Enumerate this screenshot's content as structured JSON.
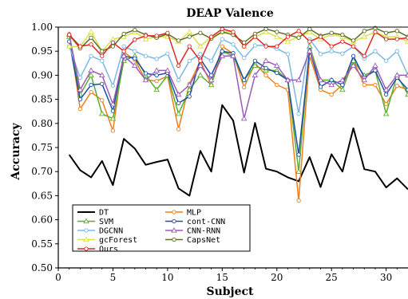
{
  "chart_data": {
    "type": "line",
    "title": "DEAP Valence",
    "xlabel": "Subject",
    "ylabel": "Accuracy",
    "xlim": [
      0,
      32
    ],
    "ylim": [
      0.5,
      1.0
    ],
    "xticks": [
      0,
      5,
      10,
      15,
      20,
      25,
      30
    ],
    "yticks": [
      0.5,
      0.55,
      0.6,
      0.65,
      0.7,
      0.75,
      0.8,
      0.85,
      0.9,
      0.95,
      1.0
    ],
    "grid": false,
    "legend_position": "bottom-left",
    "x": [
      1,
      2,
      3,
      4,
      5,
      6,
      7,
      8,
      9,
      10,
      11,
      12,
      13,
      14,
      15,
      16,
      17,
      18,
      19,
      20,
      21,
      22,
      23,
      24,
      25,
      26,
      27,
      28,
      29,
      30,
      31,
      32
    ],
    "series": [
      {
        "name": "DT",
        "color": "#000000",
        "marker": "none",
        "values": [
          0.735,
          0.703,
          0.688,
          0.722,
          0.672,
          0.768,
          0.748,
          0.714,
          0.72,
          0.725,
          0.665,
          0.65,
          0.743,
          0.7,
          0.838,
          0.806,
          0.698,
          0.801,
          0.706,
          0.7,
          0.688,
          0.68,
          0.73,
          0.668,
          0.736,
          0.7,
          0.79,
          0.705,
          0.7,
          0.667,
          0.686,
          0.663
        ]
      },
      {
        "name": "MLP",
        "color": "#f07d1a",
        "marker": "circle",
        "values": [
          0.985,
          0.83,
          0.865,
          0.848,
          0.785,
          0.948,
          0.932,
          0.89,
          0.888,
          0.898,
          0.788,
          0.882,
          0.93,
          0.88,
          0.96,
          0.945,
          0.875,
          0.925,
          0.9,
          0.88,
          0.87,
          0.64,
          0.94,
          0.87,
          0.86,
          0.88,
          0.93,
          0.88,
          0.88,
          0.84,
          0.878,
          0.87
        ]
      },
      {
        "name": "SVM",
        "color": "#5cae30",
        "marker": "triangle",
        "values": [
          0.98,
          0.86,
          0.9,
          0.82,
          0.81,
          0.93,
          0.94,
          0.9,
          0.87,
          0.9,
          0.82,
          0.87,
          0.9,
          0.88,
          0.95,
          0.94,
          0.89,
          0.92,
          0.91,
          0.91,
          0.89,
          0.7,
          0.96,
          0.89,
          0.89,
          0.87,
          0.93,
          0.9,
          0.91,
          0.82,
          0.9,
          0.86
        ]
      },
      {
        "name": "cont-CNN",
        "color": "#1c4fa6",
        "marker": "circle",
        "values": [
          0.97,
          0.85,
          0.88,
          0.882,
          0.826,
          0.94,
          0.935,
          0.904,
          0.9,
          0.905,
          0.842,
          0.856,
          0.934,
          0.9,
          0.95,
          0.946,
          0.89,
          0.93,
          0.915,
          0.905,
          0.89,
          0.735,
          0.952,
          0.876,
          0.89,
          0.88,
          0.94,
          0.895,
          0.91,
          0.86,
          0.895,
          0.87
        ]
      },
      {
        "name": "DGCNN",
        "color": "#7ab8e4",
        "marker": "circle",
        "values": [
          0.96,
          0.895,
          0.94,
          0.93,
          0.878,
          0.96,
          0.95,
          0.94,
          0.934,
          0.945,
          0.89,
          0.93,
          0.944,
          0.93,
          0.975,
          0.964,
          0.936,
          0.962,
          0.962,
          0.955,
          0.944,
          0.82,
          0.975,
          0.944,
          0.95,
          0.945,
          0.96,
          0.935,
          0.95,
          0.93,
          0.95,
          0.9
        ]
      },
      {
        "name": "CNN-RNN",
        "color": "#9a5bb5",
        "marker": "triangle",
        "values": [
          0.985,
          0.87,
          0.91,
          0.9,
          0.84,
          0.94,
          0.92,
          0.89,
          0.91,
          0.91,
          0.86,
          0.88,
          0.92,
          0.89,
          0.94,
          0.94,
          0.81,
          0.9,
          0.93,
          0.92,
          0.89,
          0.89,
          0.95,
          0.89,
          0.88,
          0.89,
          0.92,
          0.89,
          0.92,
          0.87,
          0.9,
          0.9
        ]
      },
      {
        "name": "gcForest",
        "color": "#dede45",
        "marker": "triangle",
        "values": [
          0.96,
          0.96,
          0.99,
          0.95,
          0.975,
          0.98,
          0.99,
          0.975,
          0.98,
          0.98,
          0.97,
          0.99,
          0.96,
          0.98,
          0.99,
          0.99,
          0.96,
          0.98,
          0.99,
          0.98,
          0.97,
          0.98,
          0.99,
          0.975,
          0.985,
          0.98,
          0.97,
          0.98,
          0.99,
          0.98,
          0.98,
          0.97
        ]
      },
      {
        "name": "CapsNet",
        "color": "#5b6e2a",
        "marker": "circle",
        "values": [
          0.984,
          0.956,
          0.978,
          0.95,
          0.96,
          0.986,
          0.994,
          0.984,
          0.978,
          0.986,
          0.972,
          0.98,
          0.988,
          0.976,
          0.99,
          0.984,
          0.968,
          0.986,
          0.996,
          0.99,
          0.984,
          0.978,
          0.996,
          0.982,
          0.988,
          0.984,
          0.972,
          0.992,
          0.998,
          0.988,
          0.992,
          0.98
        ]
      },
      {
        "name": "Ours",
        "color": "#e0281f",
        "marker": "circle",
        "values": [
          0.984,
          0.96,
          0.964,
          0.94,
          0.968,
          0.95,
          0.974,
          0.982,
          0.982,
          0.988,
          0.92,
          0.96,
          0.93,
          0.98,
          0.996,
          0.99,
          0.96,
          0.98,
          0.96,
          0.96,
          0.98,
          0.992,
          0.97,
          0.98,
          0.96,
          0.97,
          0.96,
          0.94,
          0.99,
          0.975,
          0.975,
          0.978
        ]
      }
    ]
  }
}
